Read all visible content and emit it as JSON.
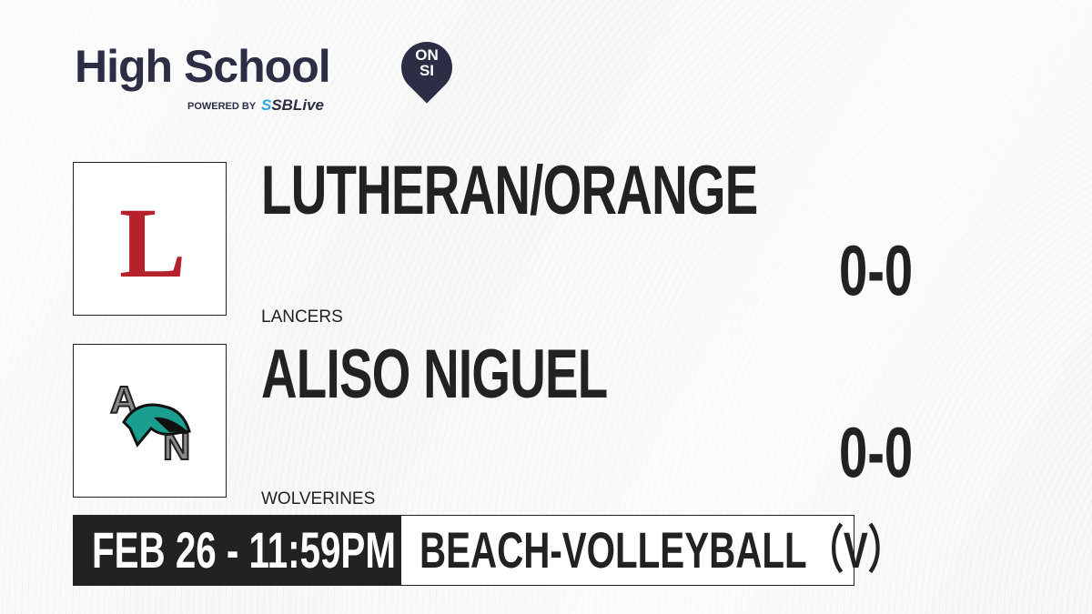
{
  "brand": {
    "title": "High School",
    "badge_top": "ON",
    "badge_bottom": "SI",
    "powered_by": "POWERED BY",
    "partner_prefix": "S",
    "partner": "SBLive",
    "accent": "#29a9e1",
    "navy": "#2b2e45"
  },
  "teams": [
    {
      "name": "LUTHERAN/ORANGE",
      "mascot": "LANCERS",
      "score": "0-0",
      "logo_letter": "L",
      "logo_color": "#b5222b"
    },
    {
      "name": "ALISO NIGUEL",
      "mascot": "WOLVERINES",
      "score": "0-0",
      "logo_letters": [
        "A",
        "N"
      ],
      "logo_color": "#1a9e8f"
    }
  ],
  "event": {
    "datetime": "FEB 26 - 11:59PM",
    "sport": "BEACH-VOLLEYBALL（V）"
  }
}
